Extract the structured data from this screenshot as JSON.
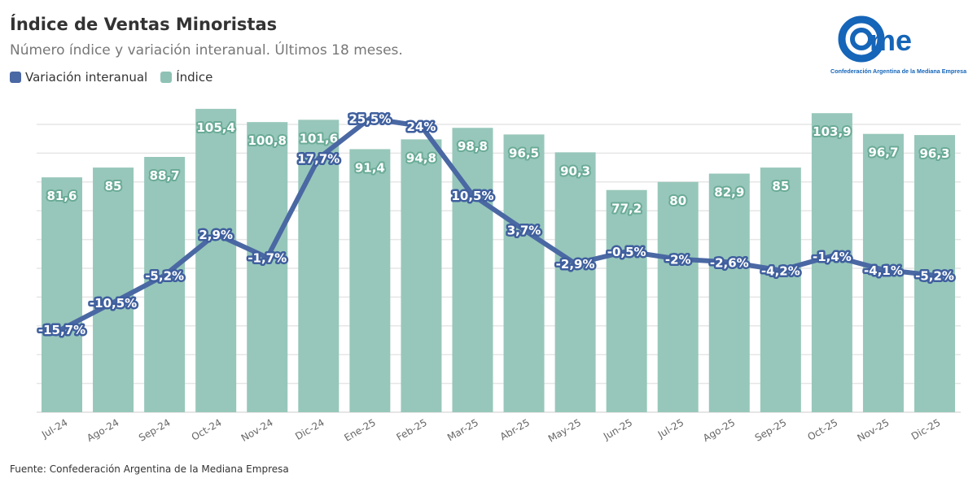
{
  "header": {
    "title": "Índice de Ventas Minoristas",
    "subtitle": "Número índice y variación interanual. Últimos 18 meses."
  },
  "legend": [
    {
      "label": "Variación interanual",
      "color": "#4a68a3"
    },
    {
      "label": "Índice",
      "color": "#8fc2b4"
    }
  ],
  "logo": {
    "text": "came",
    "caption": "Confederación Argentina de la Mediana Empresa"
  },
  "footer": "Fuente: Confederación Argentina de la Mediana Empresa",
  "chart_data": {
    "type": "bar+line",
    "categories": [
      "Jul-24",
      "Ago-24",
      "Sep-24",
      "Oct-24",
      "Nov-24",
      "Dic-24",
      "Ene-25",
      "Feb-25",
      "Mar-25",
      "Abr-25",
      "May-25",
      "Jun-25",
      "Jul-25",
      "Ago-25",
      "Sep-25",
      "Oct-25",
      "Nov-25",
      "Dic-25"
    ],
    "series": [
      {
        "name": "Índice",
        "type": "bar",
        "values": [
          81.6,
          85,
          88.7,
          105.4,
          100.8,
          101.6,
          91.4,
          94.8,
          98.8,
          96.5,
          90.3,
          77.2,
          80,
          82.9,
          85,
          103.9,
          96.7,
          96.3
        ],
        "labels": [
          "81,6",
          "85",
          "88,7",
          "105,4",
          "100,8",
          "101,6",
          "91,4",
          "94,8",
          "98,8",
          "96,5",
          "90,3",
          "77,2",
          "80",
          "82,9",
          "85",
          "103,9",
          "96,7",
          "96,3"
        ],
        "ylim": [
          0,
          110
        ]
      },
      {
        "name": "Variación interanual",
        "type": "line",
        "values": [
          -15.7,
          -10.5,
          -5.2,
          2.9,
          -1.7,
          17.7,
          25.5,
          24,
          10.5,
          3.7,
          -2.9,
          -0.5,
          -2,
          -2.6,
          -4.2,
          -1.4,
          -4.1,
          -5.2
        ],
        "labels": [
          "-15,7%",
          "-10,5%",
          "-5,2%",
          "2,9%",
          "-1,7%",
          "17,7%",
          "25,5%",
          "24%",
          "10,5%",
          "3,7%",
          "-2,9%",
          "-0,5%",
          "-2%",
          "-2,6%",
          "-4,2%",
          "-1,4%",
          "-4,1%",
          "-5,2%"
        ]
      }
    ],
    "grid": true
  }
}
